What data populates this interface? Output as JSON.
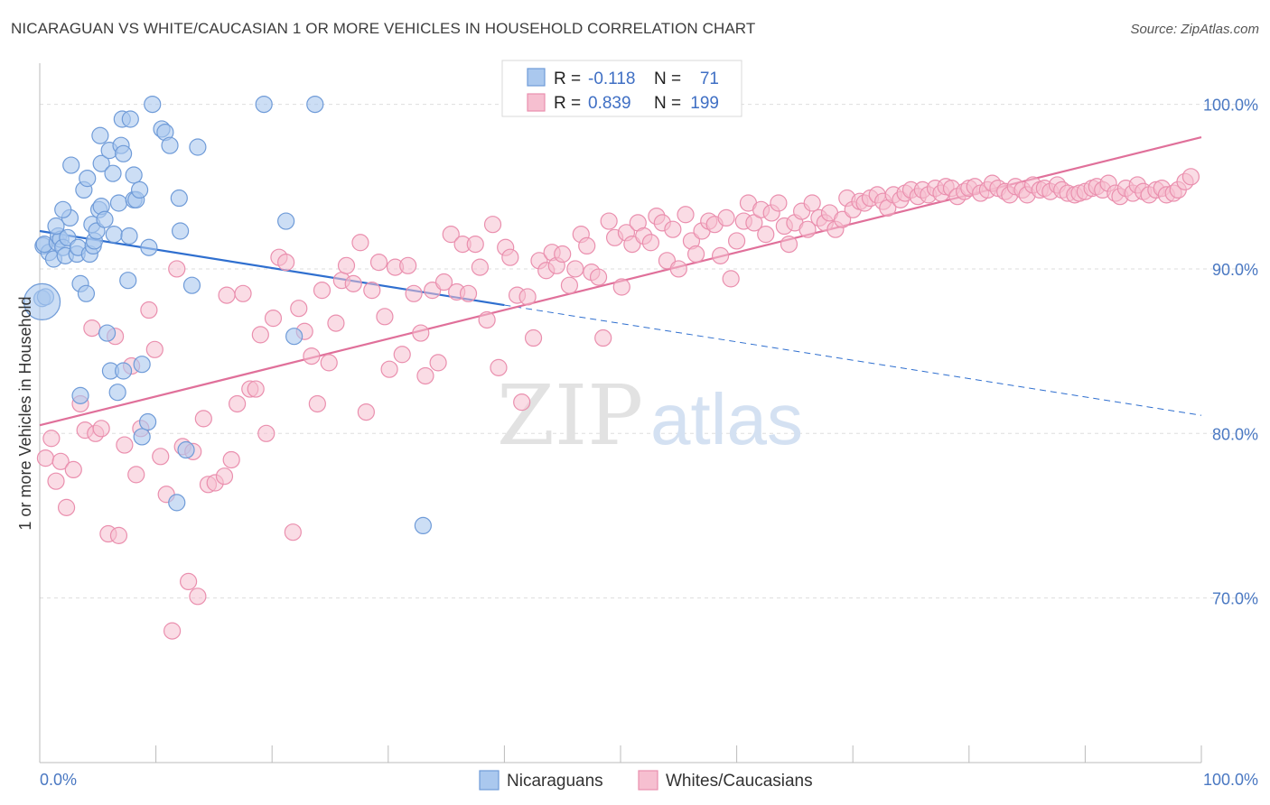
{
  "title": "NICARAGUAN VS WHITE/CAUCASIAN 1 OR MORE VEHICLES IN HOUSEHOLD CORRELATION CHART",
  "source": "Source: ZipAtlas.com",
  "watermark": {
    "zip": "ZIP",
    "atlas": "atlas"
  },
  "colors": {
    "blue_fill": "#aac8ee",
    "blue_stroke": "#6f9bd8",
    "blue_line": "#2f6fcf",
    "pink_fill": "#f6bfd0",
    "pink_stroke": "#ea8fae",
    "pink_line": "#e0709a",
    "axis_text": "#4a78c2",
    "grid": "#dddddd"
  },
  "legend_top": {
    "rows": [
      {
        "r_label": "R = ",
        "r_value": "-0.118",
        "n_label": "N = ",
        "n_value": "71"
      },
      {
        "r_label": "R = ",
        "r_value": "0.839",
        "n_label": "N = ",
        "n_value": "199"
      }
    ]
  },
  "legend_bottom": [
    "Nicaraguans",
    "Whites/Caucasians"
  ],
  "chart_data": {
    "type": "scatter",
    "xlabel": "",
    "ylabel": "1 or more Vehicles in Household",
    "xlim": [
      0,
      100
    ],
    "ylim": [
      60,
      102.5
    ],
    "x_tick_labels": [
      {
        "value": 0,
        "label": "0.0%"
      },
      {
        "value": 100,
        "label": "100.0%"
      }
    ],
    "y_tick_labels": [
      {
        "value": 100,
        "label": "100.0%"
      },
      {
        "value": 90,
        "label": "90.0%"
      },
      {
        "value": 80,
        "label": "80.0%"
      },
      {
        "value": 70,
        "label": "70.0%"
      }
    ],
    "grid": true,
    "series": [
      {
        "name": "Nicaraguans",
        "color": "#aac8ee",
        "trend": {
          "x": [
            0,
            40,
            100
          ],
          "y": [
            92.3,
            87.8,
            81.1
          ],
          "solid_until": 40
        },
        "points": [
          [
            0.2,
            88.2
          ],
          [
            0.5,
            88.3
          ],
          [
            0.3,
            91.4
          ],
          [
            0.8,
            91.0
          ],
          [
            0.4,
            91.5
          ],
          [
            1.2,
            90.6
          ],
          [
            1.5,
            91.6
          ],
          [
            1.6,
            92.0
          ],
          [
            1.8,
            91.8
          ],
          [
            2.0,
            91.3
          ],
          [
            2.4,
            91.9
          ],
          [
            2.2,
            90.8
          ],
          [
            1.4,
            92.6
          ],
          [
            2.6,
            93.1
          ],
          [
            2.0,
            93.6
          ],
          [
            3.2,
            90.9
          ],
          [
            3.5,
            89.1
          ],
          [
            3.3,
            91.3
          ],
          [
            4.0,
            88.5
          ],
          [
            3.8,
            94.8
          ],
          [
            4.1,
            95.5
          ],
          [
            2.7,
            96.3
          ],
          [
            4.3,
            90.9
          ],
          [
            4.5,
            92.7
          ],
          [
            4.6,
            91.4
          ],
          [
            4.7,
            91.7
          ],
          [
            4.9,
            92.3
          ],
          [
            5.1,
            93.6
          ],
          [
            5.3,
            93.8
          ],
          [
            5.6,
            93.0
          ],
          [
            5.3,
            96.4
          ],
          [
            5.2,
            98.1
          ],
          [
            6.0,
            97.2
          ],
          [
            6.3,
            95.8
          ],
          [
            6.4,
            92.1
          ],
          [
            6.8,
            94.0
          ],
          [
            7.0,
            97.5
          ],
          [
            7.1,
            99.1
          ],
          [
            7.2,
            97.0
          ],
          [
            7.8,
            99.1
          ],
          [
            7.7,
            92.0
          ],
          [
            7.6,
            89.3
          ],
          [
            8.1,
            94.2
          ],
          [
            8.1,
            95.7
          ],
          [
            8.3,
            94.2
          ],
          [
            8.6,
            94.8
          ],
          [
            9.4,
            91.3
          ],
          [
            9.7,
            100.0
          ],
          [
            10.5,
            98.5
          ],
          [
            10.8,
            98.3
          ],
          [
            11.2,
            97.5
          ],
          [
            12.0,
            94.3
          ],
          [
            12.1,
            92.3
          ],
          [
            13.1,
            89.0
          ],
          [
            13.6,
            97.4
          ],
          [
            19.3,
            100.0
          ],
          [
            21.2,
            92.9
          ],
          [
            21.9,
            85.9
          ],
          [
            23.7,
            100.0
          ],
          [
            5.8,
            86.1
          ],
          [
            6.1,
            83.8
          ],
          [
            7.2,
            83.8
          ],
          [
            8.8,
            84.2
          ],
          [
            3.5,
            82.3
          ],
          [
            6.7,
            82.5
          ],
          [
            9.3,
            80.7
          ],
          [
            8.8,
            79.8
          ],
          [
            12.6,
            79.0
          ],
          [
            11.8,
            75.8
          ],
          [
            33.0,
            74.4
          ],
          [
            0.2,
            88.0
          ]
        ]
      },
      {
        "name": "Whites/Caucasians",
        "color": "#f6bfd0",
        "trend": {
          "x": [
            0,
            100
          ],
          "y": [
            80.5,
            98.0
          ]
        },
        "points": [
          [
            0.5,
            78.5
          ],
          [
            1.0,
            79.7
          ],
          [
            1.4,
            77.1
          ],
          [
            1.8,
            78.3
          ],
          [
            2.3,
            75.5
          ],
          [
            2.9,
            77.8
          ],
          [
            3.5,
            81.8
          ],
          [
            3.9,
            80.2
          ],
          [
            4.5,
            86.4
          ],
          [
            4.8,
            80.0
          ],
          [
            5.3,
            80.3
          ],
          [
            5.9,
            73.9
          ],
          [
            6.5,
            85.9
          ],
          [
            6.8,
            73.8
          ],
          [
            7.3,
            79.3
          ],
          [
            7.9,
            84.1
          ],
          [
            8.3,
            77.5
          ],
          [
            8.7,
            80.3
          ],
          [
            9.4,
            87.5
          ],
          [
            9.9,
            85.1
          ],
          [
            10.4,
            78.6
          ],
          [
            10.9,
            76.3
          ],
          [
            11.4,
            68.0
          ],
          [
            11.8,
            90.0
          ],
          [
            12.3,
            79.2
          ],
          [
            12.8,
            71.0
          ],
          [
            13.2,
            78.9
          ],
          [
            13.6,
            70.1
          ],
          [
            14.1,
            80.9
          ],
          [
            14.5,
            76.9
          ],
          [
            15.1,
            77.0
          ],
          [
            15.9,
            77.4
          ],
          [
            16.1,
            88.4
          ],
          [
            16.5,
            78.4
          ],
          [
            17.0,
            81.8
          ],
          [
            17.5,
            88.5
          ],
          [
            18.1,
            82.7
          ],
          [
            18.6,
            82.7
          ],
          [
            19.0,
            86.0
          ],
          [
            19.5,
            80.0
          ],
          [
            20.1,
            87.0
          ],
          [
            20.6,
            90.7
          ],
          [
            21.2,
            90.4
          ],
          [
            21.8,
            74.0
          ],
          [
            22.3,
            87.6
          ],
          [
            22.8,
            86.2
          ],
          [
            23.4,
            84.7
          ],
          [
            23.9,
            81.8
          ],
          [
            24.3,
            88.7
          ],
          [
            24.9,
            84.3
          ],
          [
            25.5,
            86.7
          ],
          [
            26.0,
            89.3
          ],
          [
            26.4,
            90.2
          ],
          [
            27.0,
            89.1
          ],
          [
            27.6,
            91.6
          ],
          [
            28.1,
            81.3
          ],
          [
            28.6,
            88.7
          ],
          [
            29.2,
            90.4
          ],
          [
            29.7,
            87.1
          ],
          [
            30.1,
            83.9
          ],
          [
            30.6,
            90.1
          ],
          [
            31.2,
            84.8
          ],
          [
            31.7,
            90.2
          ],
          [
            32.2,
            88.5
          ],
          [
            32.8,
            86.1
          ],
          [
            33.2,
            83.5
          ],
          [
            33.8,
            88.7
          ],
          [
            34.3,
            84.3
          ],
          [
            34.8,
            89.2
          ],
          [
            35.4,
            92.1
          ],
          [
            35.9,
            88.6
          ],
          [
            36.4,
            91.5
          ],
          [
            36.9,
            88.5
          ],
          [
            37.5,
            91.5
          ],
          [
            37.9,
            90.1
          ],
          [
            38.5,
            86.9
          ],
          [
            39.0,
            92.7
          ],
          [
            39.5,
            84.0
          ],
          [
            40.1,
            91.3
          ],
          [
            40.5,
            90.7
          ],
          [
            41.1,
            88.4
          ],
          [
            41.5,
            81.9
          ],
          [
            42.0,
            88.3
          ],
          [
            42.5,
            85.8
          ],
          [
            43.0,
            90.5
          ],
          [
            43.6,
            89.9
          ],
          [
            44.1,
            91.0
          ],
          [
            44.5,
            90.2
          ],
          [
            45.0,
            90.9
          ],
          [
            45.6,
            89.0
          ],
          [
            46.1,
            90.0
          ],
          [
            46.6,
            92.1
          ],
          [
            47.1,
            91.4
          ],
          [
            47.5,
            89.8
          ],
          [
            48.1,
            89.5
          ],
          [
            48.5,
            85.8
          ],
          [
            49.0,
            92.9
          ],
          [
            49.5,
            91.9
          ],
          [
            50.1,
            88.9
          ],
          [
            50.5,
            92.2
          ],
          [
            51.0,
            91.5
          ],
          [
            51.5,
            92.8
          ],
          [
            52.0,
            92.0
          ],
          [
            52.6,
            91.6
          ],
          [
            53.1,
            93.2
          ],
          [
            53.6,
            92.8
          ],
          [
            54.0,
            90.5
          ],
          [
            54.5,
            92.4
          ],
          [
            55.0,
            90.0
          ],
          [
            55.6,
            93.3
          ],
          [
            56.1,
            91.7
          ],
          [
            56.5,
            90.9
          ],
          [
            57.0,
            92.3
          ],
          [
            57.6,
            92.9
          ],
          [
            58.1,
            92.7
          ],
          [
            58.6,
            90.8
          ],
          [
            59.1,
            93.1
          ],
          [
            59.5,
            89.4
          ],
          [
            60.0,
            91.7
          ],
          [
            60.6,
            92.9
          ],
          [
            61.0,
            94.0
          ],
          [
            61.5,
            92.8
          ],
          [
            62.1,
            93.6
          ],
          [
            62.5,
            92.1
          ],
          [
            63.0,
            93.4
          ],
          [
            63.6,
            94.0
          ],
          [
            64.1,
            92.6
          ],
          [
            64.5,
            91.5
          ],
          [
            65.0,
            92.8
          ],
          [
            65.6,
            93.5
          ],
          [
            66.1,
            92.4
          ],
          [
            66.5,
            94.0
          ],
          [
            67.1,
            93.1
          ],
          [
            67.6,
            92.8
          ],
          [
            68.0,
            93.4
          ],
          [
            68.5,
            92.4
          ],
          [
            69.1,
            93.0
          ],
          [
            69.5,
            94.3
          ],
          [
            70.0,
            93.6
          ],
          [
            70.6,
            94.1
          ],
          [
            71.0,
            94.0
          ],
          [
            71.5,
            94.3
          ],
          [
            72.1,
            94.5
          ],
          [
            72.6,
            94.1
          ],
          [
            73.0,
            93.7
          ],
          [
            73.5,
            94.5
          ],
          [
            74.1,
            94.2
          ],
          [
            74.5,
            94.6
          ],
          [
            75.0,
            94.8
          ],
          [
            75.6,
            94.4
          ],
          [
            76.0,
            94.8
          ],
          [
            76.5,
            94.5
          ],
          [
            77.1,
            94.9
          ],
          [
            77.6,
            94.6
          ],
          [
            78.0,
            95.0
          ],
          [
            78.5,
            94.9
          ],
          [
            79.0,
            94.4
          ],
          [
            79.6,
            94.7
          ],
          [
            80.0,
            94.9
          ],
          [
            80.5,
            95.0
          ],
          [
            81.0,
            94.6
          ],
          [
            81.6,
            94.8
          ],
          [
            82.0,
            95.2
          ],
          [
            82.5,
            94.9
          ],
          [
            83.1,
            94.7
          ],
          [
            83.5,
            94.5
          ],
          [
            84.0,
            95.0
          ],
          [
            84.6,
            94.8
          ],
          [
            85.0,
            94.5
          ],
          [
            85.5,
            95.1
          ],
          [
            86.1,
            94.8
          ],
          [
            86.5,
            94.9
          ],
          [
            87.0,
            94.7
          ],
          [
            87.6,
            95.1
          ],
          [
            88.0,
            94.8
          ],
          [
            88.5,
            94.6
          ],
          [
            89.1,
            94.5
          ],
          [
            89.5,
            94.6
          ],
          [
            90.0,
            94.7
          ],
          [
            90.6,
            94.9
          ],
          [
            91.0,
            95.0
          ],
          [
            91.5,
            94.8
          ],
          [
            92.0,
            95.2
          ],
          [
            92.6,
            94.6
          ],
          [
            93.0,
            94.4
          ],
          [
            93.5,
            94.9
          ],
          [
            94.1,
            94.6
          ],
          [
            94.5,
            95.1
          ],
          [
            95.0,
            94.7
          ],
          [
            95.5,
            94.5
          ],
          [
            96.1,
            94.8
          ],
          [
            96.6,
            94.9
          ],
          [
            97.0,
            94.5
          ],
          [
            97.6,
            94.6
          ],
          [
            98.0,
            94.8
          ],
          [
            98.6,
            95.3
          ],
          [
            99.1,
            95.6
          ]
        ]
      }
    ]
  }
}
